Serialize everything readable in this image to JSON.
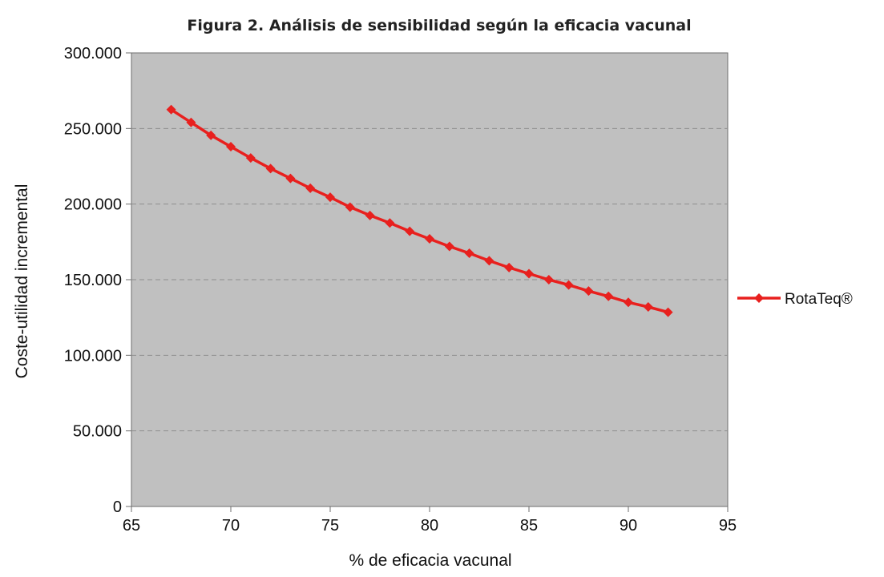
{
  "chart_data": {
    "type": "line",
    "title": "Figura 2.    Análisis de sensibilidad según la eficacia vacunal",
    "xlabel": "% de eficacia vacunal",
    "ylabel": "Coste-utilidad incremental",
    "xlim": [
      65,
      95
    ],
    "ylim": [
      0,
      300000
    ],
    "x_ticks": [
      "65",
      "70",
      "75",
      "80",
      "85",
      "90",
      "95"
    ],
    "y_ticks": [
      "0",
      "50.000",
      "100.000",
      "150.000",
      "200.000",
      "250.000",
      "300.000"
    ],
    "grid": "horizontal dashed",
    "plot_background": "#c0c0c0",
    "legend_position": "right",
    "series": [
      {
        "name": "RotaTeq®",
        "color": "#e8201e",
        "marker": "diamond",
        "x": [
          67,
          68,
          69,
          70,
          71,
          72,
          73,
          74,
          75,
          76,
          77,
          78,
          79,
          80,
          81,
          82,
          83,
          84,
          85,
          86,
          87,
          88,
          89,
          90,
          91,
          92
        ],
        "y": [
          262500,
          254000,
          245500,
          238000,
          230500,
          223500,
          217000,
          210500,
          204500,
          198000,
          192500,
          187500,
          182000,
          177000,
          172000,
          167500,
          162500,
          158000,
          154000,
          150000,
          146500,
          142500,
          139000,
          135000,
          132000,
          128500
        ]
      }
    ]
  }
}
